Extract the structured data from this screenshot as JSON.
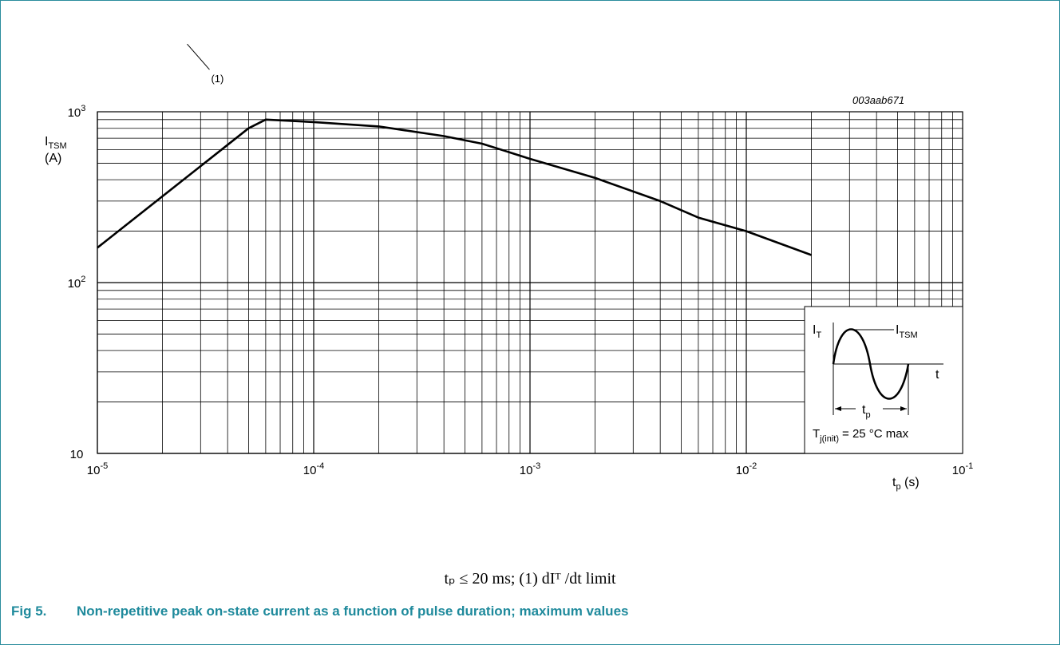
{
  "figure": {
    "ref_code": "003aab671",
    "number": "Fig 5.",
    "caption": "Non-repetitive peak on-state current as a function of pulse duration; maximum values",
    "condition": "tₚ  ≤  20 ms;  (1) dIᵀ /dt limit",
    "border_color": "#2a8c9c",
    "caption_color": "#1f8a9c"
  },
  "inset": {
    "y_label": "I",
    "y_label_sub": "T",
    "peak_label": "I",
    "peak_label_sub": "TSM",
    "x_label": "t",
    "duration_label": "t",
    "duration_label_sub": "p",
    "temp_label": "T",
    "temp_label_sub": "j(init)",
    "temp_value": "= 25 °C max"
  },
  "chart_data": {
    "type": "line",
    "title": "",
    "xscale": "log",
    "yscale": "log",
    "xlim": [
      1e-05,
      0.1
    ],
    "ylim": [
      10,
      1000
    ],
    "xlabel": "t",
    "xlabel_sub": "p",
    "xlabel_unit": "(s)",
    "ylabel": "I",
    "ylabel_sub": "TSM",
    "ylabel_unit": "(A)",
    "grid": true,
    "x_ticks": [
      {
        "value": 1e-05,
        "base": "10",
        "exp": "-5"
      },
      {
        "value": 0.0001,
        "base": "10",
        "exp": "-4"
      },
      {
        "value": 0.001,
        "base": "10",
        "exp": "-3"
      },
      {
        "value": 0.01,
        "base": "10",
        "exp": "-2"
      },
      {
        "value": 0.1,
        "base": "10",
        "exp": "-1"
      }
    ],
    "y_ticks": [
      {
        "value": 10,
        "base": "10",
        "exp": ""
      },
      {
        "value": 100,
        "base": "10",
        "exp": "2"
      },
      {
        "value": 1000,
        "base": "10",
        "exp": "3"
      }
    ],
    "annotation": {
      "text": "(1)",
      "x": 2.6e-05,
      "y": 400
    },
    "series": [
      {
        "x": [
          1e-05,
          5e-05,
          6e-05,
          0.0001,
          0.0002,
          0.0004,
          0.0006,
          0.0008,
          0.001,
          0.002,
          0.004,
          0.006,
          0.01,
          0.02
        ],
        "y": [
          160,
          800,
          900,
          870,
          820,
          720,
          650,
          580,
          530,
          410,
          300,
          240,
          200,
          145
        ]
      }
    ]
  }
}
